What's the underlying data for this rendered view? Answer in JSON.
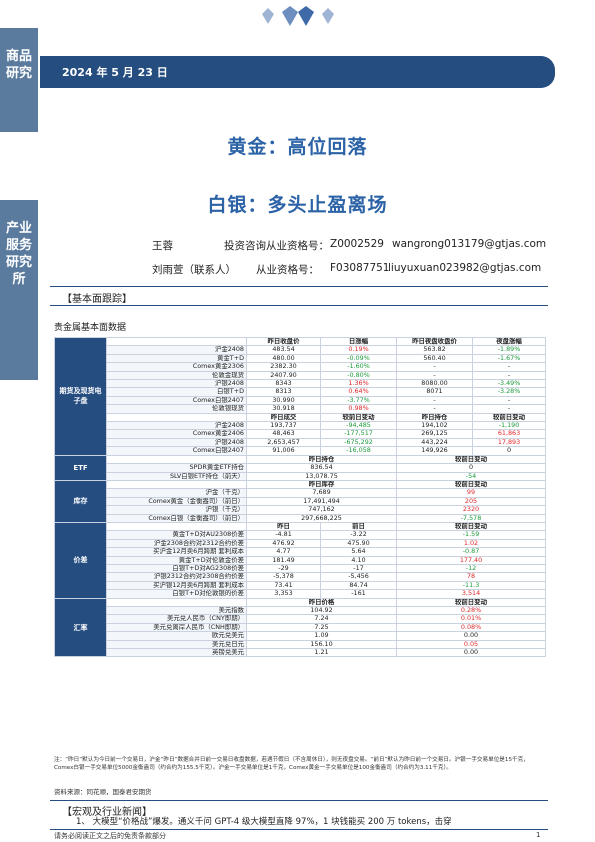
{
  "sidebar": {
    "top_label": "商品研究",
    "bottom_label": "产业服务研究所"
  },
  "header": {
    "date": "2024 年 5 月 23 日"
  },
  "titles": {
    "main": "黄金：高位回落",
    "sub": "白银：多头止盈离场"
  },
  "authors": [
    {
      "name": "王蓉",
      "cert_label": "投资咨询从业资格号：",
      "cert": "Z0002529",
      "email": "wangrong013179@gtjas.com"
    },
    {
      "name": "刘雨萱（联系人）",
      "cert_label": "从业资格号：",
      "cert": "F03087751",
      "email": "liuyuxuan023982@gtjas.com"
    }
  ],
  "sections": {
    "fundamentals": "【基本面跟踪】",
    "table_title": "贵金属基本面数据",
    "macro": "【宏观及行业新闻】"
  },
  "table": {
    "categories": {
      "futures": "期货及现货电子盘",
      "etf": "ETF",
      "inventory": "库存",
      "spread": "价差",
      "fx": "汇率"
    },
    "futures_header": [
      "",
      "昨日收盘价",
      "日涨幅",
      "昨日夜盘收盘价",
      "夜盘涨幅"
    ],
    "futures_rows": [
      [
        "沪金2408",
        "483.54",
        "0.19%",
        "563.82",
        "-1.89%"
      ],
      [
        "黄金T+D",
        "480.00",
        "-0.09%",
        "560.40",
        "-1.67%"
      ],
      [
        "Comex黄金2306",
        "2382.30",
        "-1.60%",
        "-",
        "-"
      ],
      [
        "伦敦金现货",
        "2407.90",
        "-0.80%",
        "-",
        "-"
      ],
      [
        "沪银2408",
        "8343",
        "1.36%",
        "8080.00",
        "-3.49%"
      ],
      [
        "白银T+D",
        "8313",
        "0.64%",
        "8071",
        "-3.28%"
      ],
      [
        "Comex白银2407",
        "30.990",
        "-3.77%",
        "-",
        "-"
      ],
      [
        "伦敦银现货",
        "30.918",
        "0.98%",
        "-",
        "-"
      ]
    ],
    "volume_header": [
      "",
      "昨日成交",
      "较前日变动",
      "昨日持仓",
      "较前日变动"
    ],
    "volume_rows": [
      [
        "沪金2408",
        "193,737",
        "-94,485",
        "194,102",
        "-1,190"
      ],
      [
        "Comex黄金2406",
        "48,463",
        "-177,517",
        "269,125",
        "61,863"
      ],
      [
        "沪银2408",
        "2,653,457",
        "-675,292",
        "443,224",
        "17,893"
      ],
      [
        "Comex白银2407",
        "91,006",
        "-16,058",
        "149,926",
        "0"
      ]
    ],
    "etf_header": [
      "",
      "昨日持仓",
      "较前日变动"
    ],
    "etf_rows": [
      [
        "SPDR黄金ETF持仓",
        "836.54",
        "0"
      ],
      [
        "SLV白银ETF持仓（前天）",
        "13,078.75",
        "-54"
      ]
    ],
    "inv_header": [
      "",
      "昨日库存",
      "较前日变动"
    ],
    "inv_rows": [
      [
        "沪金（千克）",
        "7,689",
        "99"
      ],
      [
        "Comex黄金（金衡盎司）（前日）",
        "17,491,494",
        "205"
      ],
      [
        "沪银（千克）",
        "747,162",
        "2320"
      ],
      [
        "Comex白银（金衡盎司）（前日）",
        "297,668,225",
        "-7,578"
      ]
    ],
    "spread_header": [
      "",
      "昨日",
      "前日",
      "较前日变动"
    ],
    "spread_rows": [
      [
        "黄金T+D对AU2308价差",
        "-4.81",
        "-3.22",
        "-1.59"
      ],
      [
        "沪金2308合约对2312合约价差",
        "476.92",
        "475.90",
        "1.02"
      ],
      [
        "买沪金12月卖6月跨期\n套利成本",
        "4.77",
        "5.64",
        "-0.87"
      ],
      [
        "黄金T+D对伦敦金价差",
        "181.49",
        "4.10",
        "177.40"
      ],
      [
        "白银T+D对AG2308价差",
        "-29",
        "-17",
        "-12"
      ],
      [
        "沪银2312合约对2308合约价差",
        "-5,378",
        "-5,456",
        "78"
      ],
      [
        "买沪银12月卖6月跨期\n套利成本",
        "73.41",
        "84.74",
        "-11.3"
      ],
      [
        "白银T+D对伦敦银的价差",
        "3,353",
        "-161",
        "3,514"
      ]
    ],
    "fx_header": [
      "",
      "昨日价格",
      "较前日变动"
    ],
    "fx_rows": [
      [
        "美元指数",
        "104.92",
        "0.28%"
      ],
      [
        "美元兑人民币（CNY即期）",
        "7.24",
        "0.01%"
      ],
      [
        "美元兑离岸人民币（CNH即期）",
        "7.25",
        "0.08%"
      ],
      [
        "欧元兑美元",
        "1.09",
        "0.00"
      ],
      [
        "美元兑日元",
        "156.10",
        "0.05"
      ],
      [
        "英镑兑美元",
        "1.21",
        "0.00"
      ]
    ]
  },
  "note": "注：“昨日”默认为今日前一个交易日，沪金“昨日”数据合并日前一交易日收盘数据，若遇节假日（不含周休日），则无夜盘交易。“前日”默认为昨日前一个交易日。沪银一手交易单位是15千克，Comex白银一手交易单位5000金衡盎司（约合约为155.5千克）。沪金一手交易单位是1千克，Comex黄金一手交易单位是100金衡盎司（约合约为3.11千克）。",
  "source": "资料来源：同花顺，国泰君安期货",
  "news_item": "1、  大模型“价格战”爆发。通义千问 GPT-4 级大模型直降 97%，1 块钱能买 200 万 tokens，击穿",
  "footer": {
    "disclaimer": "请务必阅读正文之后的免责条款部分",
    "page": "1"
  }
}
